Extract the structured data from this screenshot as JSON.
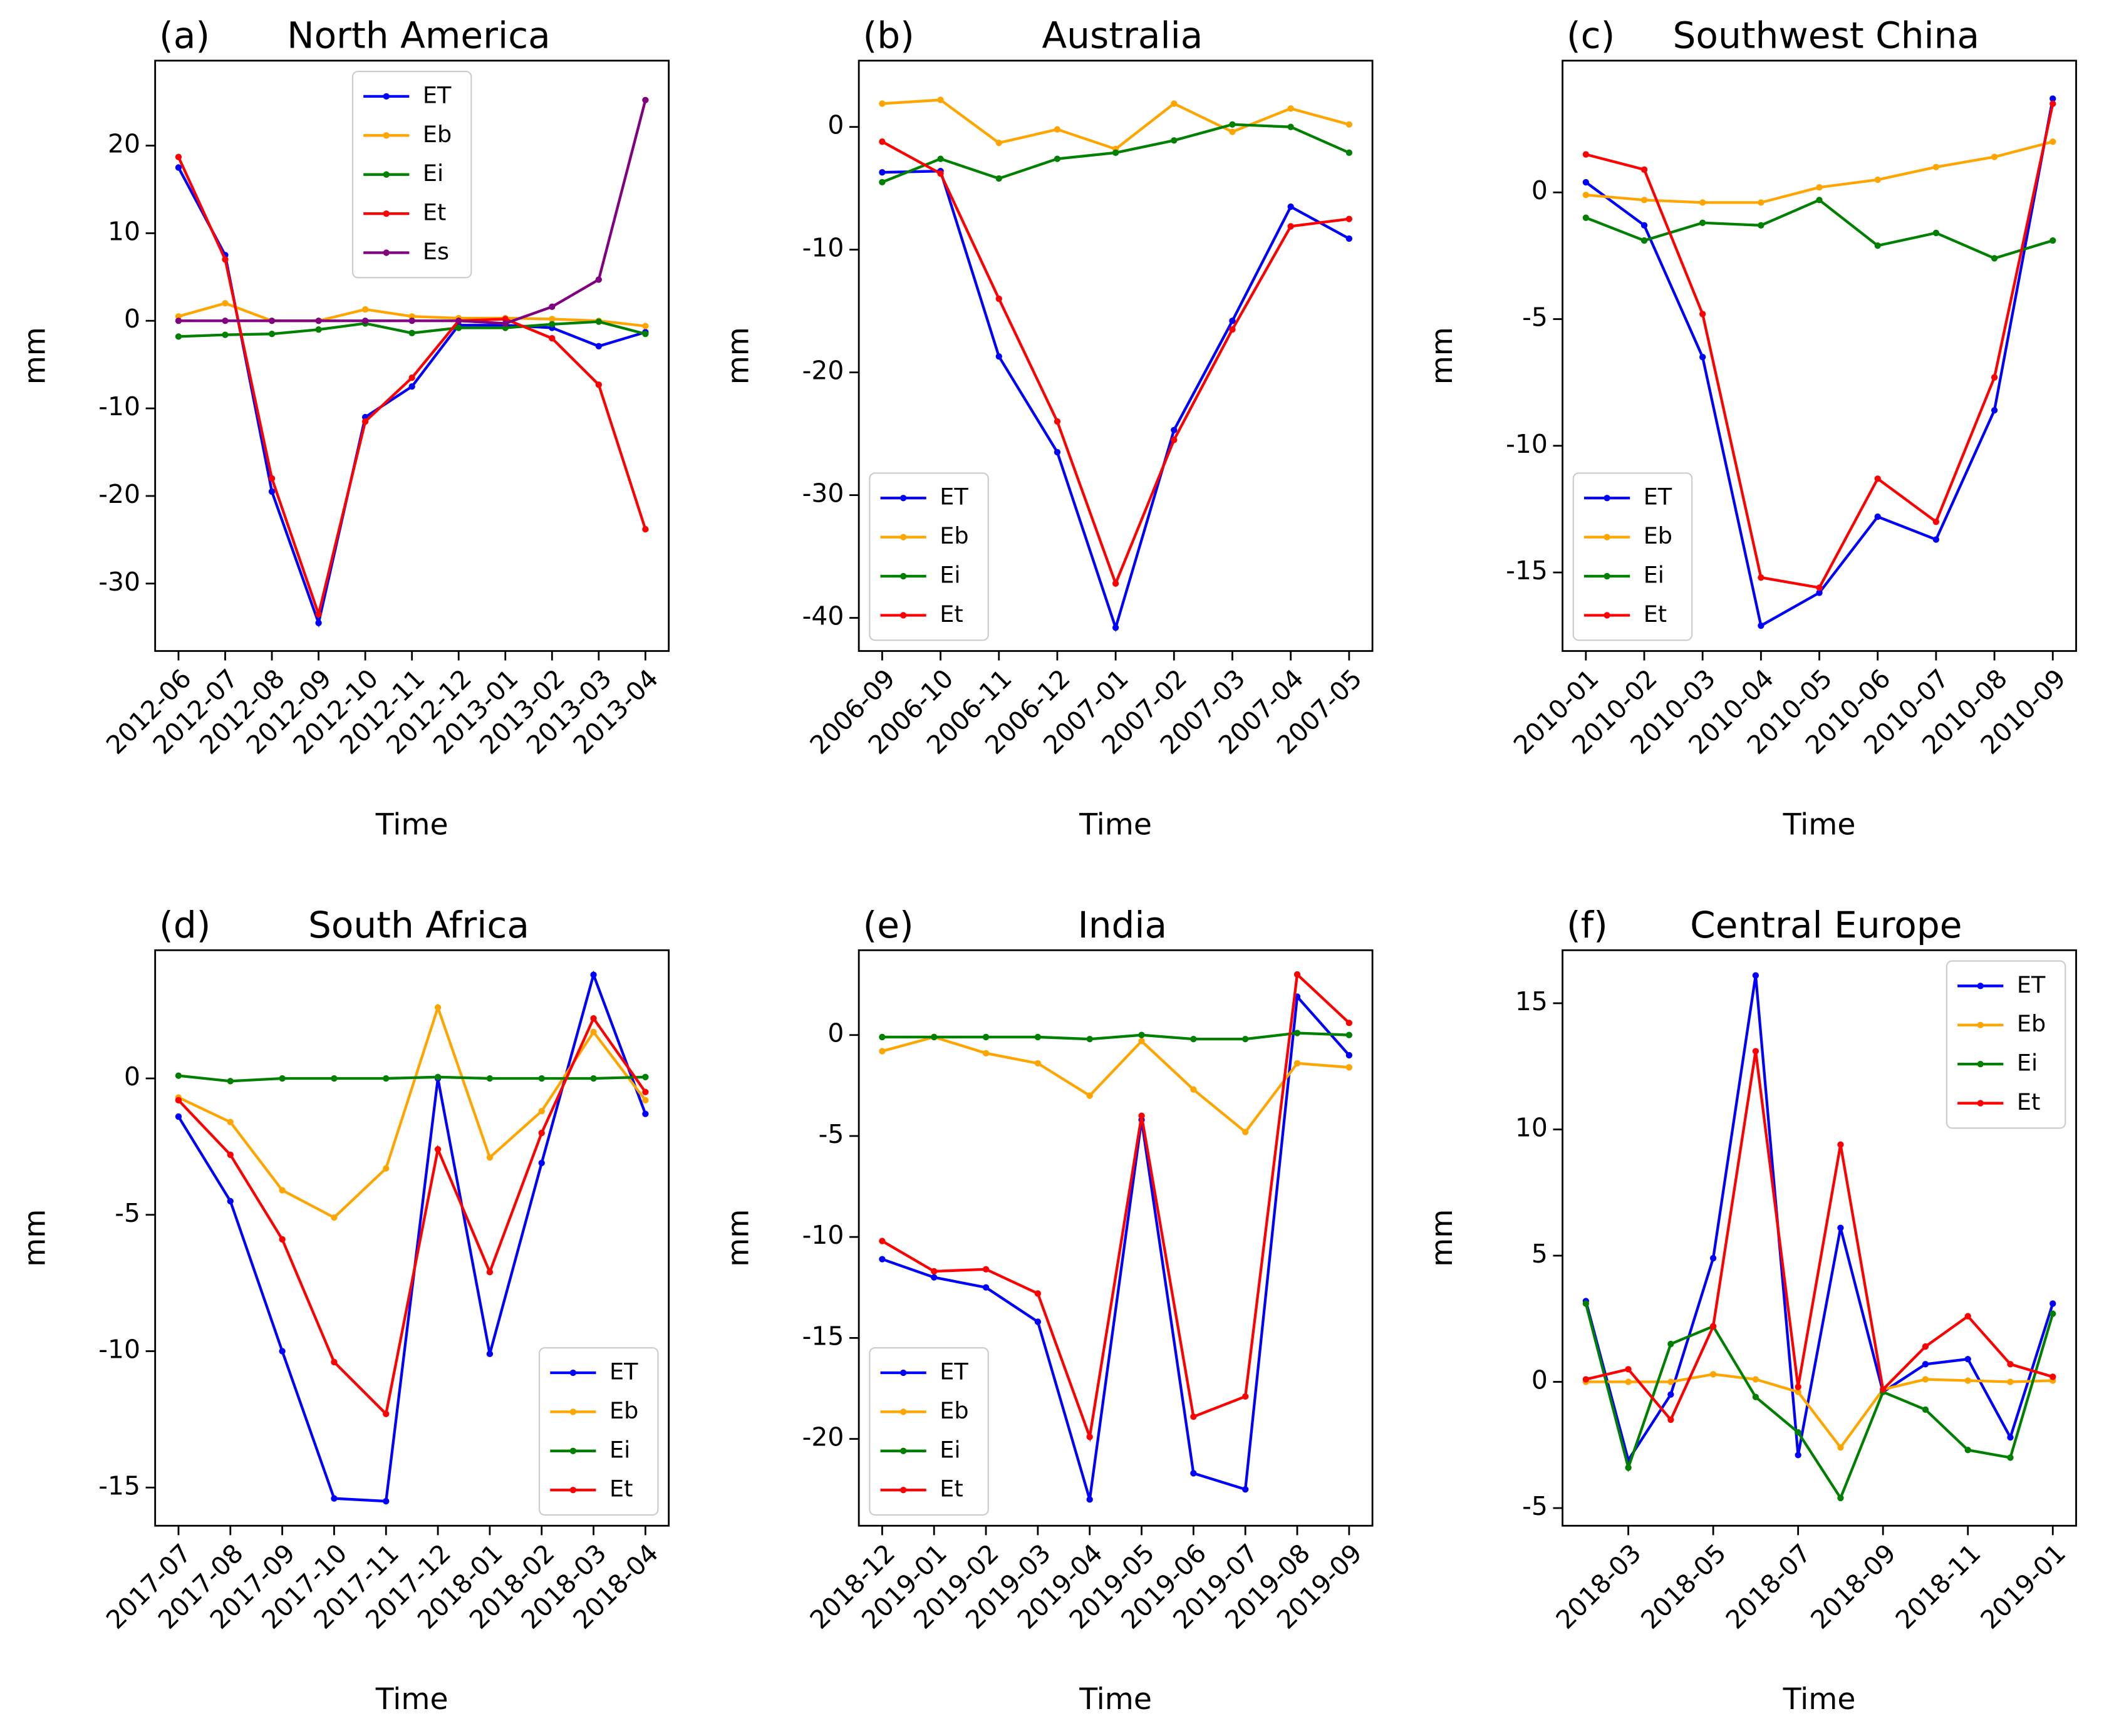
{
  "chart_data": [
    {
      "type": "line",
      "panel_label": "(a)",
      "title": "North America",
      "xlabel": "Time",
      "ylabel": "mm",
      "categories": [
        "2012-06",
        "2012-07",
        "2012-08",
        "2012-09",
        "2012-10",
        "2012-11",
        "2012-12",
        "2013-01",
        "2013-02",
        "2013-03",
        "2013-04"
      ],
      "ylim": [
        -37.7,
        29.7
      ],
      "yticks": [
        -30,
        -20,
        -10,
        0,
        10,
        20
      ],
      "legend": "upper center",
      "series": [
        {
          "name": "ET",
          "color": "#0000ff",
          "values": [
            17.5,
            7.5,
            -19.5,
            -34.5,
            -11,
            -7.5,
            -0.5,
            -0.5,
            -0.8,
            -2.9,
            -1.3
          ]
        },
        {
          "name": "Eb",
          "color": "#ffa500",
          "values": [
            0.5,
            2,
            0,
            0,
            1.3,
            0.5,
            0.3,
            0.3,
            0.2,
            0,
            -0.6
          ]
        },
        {
          "name": "Ei",
          "color": "#008000",
          "values": [
            -1.8,
            -1.6,
            -1.5,
            -1,
            -0.3,
            -1.4,
            -0.8,
            -0.8,
            -0.4,
            -0.1,
            -1.5
          ]
        },
        {
          "name": "Et",
          "color": "#ff0000",
          "values": [
            18.7,
            7,
            -18,
            -33.5,
            -11.5,
            -6.5,
            0,
            0.2,
            -2,
            -7.3,
            -23.8
          ]
        },
        {
          "name": "Es",
          "color": "#800080",
          "values": [
            0,
            0,
            0,
            0,
            0,
            0,
            0,
            -0.3,
            1.6,
            4.7,
            25.2
          ]
        }
      ]
    },
    {
      "type": "line",
      "panel_label": "(b)",
      "title": "Australia",
      "xlabel": "Time",
      "ylabel": "mm",
      "categories": [
        "2006-09",
        "2006-10",
        "2006-11",
        "2006-12",
        "2007-01",
        "2007-02",
        "2007-03",
        "2007-04",
        "2007-05"
      ],
      "ylim": [
        -42.7,
        5.4
      ],
      "yticks": [
        -40,
        -30,
        -20,
        -10,
        0
      ],
      "legend": "lower left",
      "series": [
        {
          "name": "ET",
          "color": "#0000ff",
          "values": [
            -3.7,
            -3.6,
            -18.7,
            -26.5,
            -40.8,
            -24.7,
            -15.8,
            -6.5,
            -9.1
          ]
        },
        {
          "name": "Eb",
          "color": "#ffa500",
          "values": [
            1.9,
            2.2,
            -1.3,
            -0.2,
            -1.8,
            1.9,
            -0.4,
            1.5,
            0.2
          ]
        },
        {
          "name": "Ei",
          "color": "#008000",
          "values": [
            -4.5,
            -2.6,
            -4.2,
            -2.6,
            -2.1,
            -1.1,
            0.2,
            0,
            -2.1
          ]
        },
        {
          "name": "Et",
          "color": "#ff0000",
          "values": [
            -1.2,
            -3.8,
            -14,
            -24,
            -37.2,
            -25.5,
            -16.5,
            -8.1,
            -7.5
          ]
        }
      ]
    },
    {
      "type": "line",
      "panel_label": "(c)",
      "title": "Southwest China",
      "xlabel": "Time",
      "ylabel": "mm",
      "categories": [
        "2010-01",
        "2010-02",
        "2010-03",
        "2010-04",
        "2010-05",
        "2010-06",
        "2010-07",
        "2010-08",
        "2010-09"
      ],
      "ylim": [
        -18.1,
        5.2
      ],
      "yticks": [
        -15,
        -10,
        -5,
        0
      ],
      "legend": "lower left",
      "series": [
        {
          "name": "ET",
          "color": "#0000ff",
          "values": [
            0.4,
            -1.3,
            -6.5,
            -17.1,
            -15.8,
            -12.8,
            -13.7,
            -8.6,
            3.7
          ]
        },
        {
          "name": "Eb",
          "color": "#ffa500",
          "values": [
            -0.1,
            -0.3,
            -0.4,
            -0.4,
            0.2,
            0.5,
            1,
            1.4,
            2
          ]
        },
        {
          "name": "Ei",
          "color": "#008000",
          "values": [
            -1,
            -1.9,
            -1.2,
            -1.3,
            -0.3,
            -2.1,
            -1.6,
            -2.6,
            -1.9
          ]
        },
        {
          "name": "Et",
          "color": "#ff0000",
          "values": [
            1.5,
            0.9,
            -4.8,
            -15.2,
            -15.6,
            -11.3,
            -13,
            -7.3,
            3.5
          ]
        }
      ]
    },
    {
      "type": "line",
      "panel_label": "(d)",
      "title": "South Africa",
      "xlabel": "Time",
      "ylabel": "mm",
      "categories": [
        "2017-07",
        "2017-08",
        "2017-09",
        "2017-10",
        "2017-11",
        "2017-12",
        "2018-01",
        "2018-02",
        "2018-03",
        "2018-04"
      ],
      "ylim": [
        -16.4,
        4.7
      ],
      "yticks": [
        -15,
        -10,
        -5,
        0
      ],
      "legend": "lower right",
      "series": [
        {
          "name": "ET",
          "color": "#0000ff",
          "values": [
            -1.4,
            -4.5,
            -10,
            -15.4,
            -15.5,
            0,
            -10.1,
            -3.1,
            3.8,
            -1.3
          ]
        },
        {
          "name": "Eb",
          "color": "#ffa500",
          "values": [
            -0.7,
            -1.6,
            -4.1,
            -5.1,
            -3.3,
            2.6,
            -2.9,
            -1.2,
            1.7,
            -0.8
          ]
        },
        {
          "name": "Ei",
          "color": "#008000",
          "values": [
            0.1,
            -0.1,
            0,
            0,
            0,
            0.05,
            0,
            0,
            0,
            0.05
          ]
        },
        {
          "name": "Et",
          "color": "#ff0000",
          "values": [
            -0.8,
            -2.8,
            -5.9,
            -10.4,
            -12.3,
            -2.6,
            -7.1,
            -2,
            2.2,
            -0.5
          ]
        }
      ]
    },
    {
      "type": "line",
      "panel_label": "(e)",
      "title": "India",
      "xlabel": "Time",
      "ylabel": "mm",
      "categories": [
        "2018-12",
        "2019-01",
        "2019-02",
        "2019-03",
        "2019-04",
        "2019-05",
        "2019-06",
        "2019-07",
        "2019-08",
        "2019-09"
      ],
      "ylim": [
        -24.3,
        4.2
      ],
      "yticks": [
        -20,
        -15,
        -10,
        -5,
        0
      ],
      "legend": "lower left",
      "series": [
        {
          "name": "ET",
          "color": "#0000ff",
          "values": [
            -11.1,
            -12,
            -12.5,
            -14.2,
            -23,
            -4.2,
            -21.7,
            -22.5,
            1.9,
            -1
          ]
        },
        {
          "name": "Eb",
          "color": "#ffa500",
          "values": [
            -0.8,
            -0.1,
            -0.9,
            -1.4,
            -3,
            -0.3,
            -2.7,
            -4.8,
            -1.4,
            -1.6
          ]
        },
        {
          "name": "Ei",
          "color": "#008000",
          "values": [
            -0.1,
            -0.1,
            -0.1,
            -0.1,
            -0.2,
            0,
            -0.2,
            -0.2,
            0.1,
            0
          ]
        },
        {
          "name": "Et",
          "color": "#ff0000",
          "values": [
            -10.2,
            -11.7,
            -11.6,
            -12.8,
            -19.9,
            -4,
            -18.9,
            -17.9,
            3,
            0.6
          ]
        }
      ]
    },
    {
      "type": "line",
      "panel_label": "(f)",
      "title": "Central Europe",
      "xlabel": "Time",
      "ylabel": "mm",
      "categories": [
        null,
        "2018-03",
        null,
        "2018-05",
        null,
        "2018-07",
        null,
        "2018-09",
        null,
        "2018-11",
        null,
        "2019-01"
      ],
      "ylim": [
        -5.7,
        17.1
      ],
      "yticks": [
        -5,
        0,
        5,
        10,
        15
      ],
      "legend": "upper right",
      "series": [
        {
          "name": "ET",
          "color": "#0000ff",
          "values": [
            3.2,
            -3.1,
            -0.5,
            4.9,
            16.1,
            -2.9,
            6.1,
            -0.4,
            0.7,
            0.9,
            -2.2,
            3.1
          ]
        },
        {
          "name": "Eb",
          "color": "#ffa500",
          "values": [
            0,
            0,
            0,
            0.3,
            0.1,
            -0.4,
            -2.6,
            -0.3,
            0.1,
            0.05,
            0,
            0.05
          ]
        },
        {
          "name": "Ei",
          "color": "#008000",
          "values": [
            3.1,
            -3.4,
            1.5,
            2.2,
            -0.6,
            -2,
            -4.6,
            -0.4,
            -1.1,
            -2.7,
            -3,
            2.7
          ]
        },
        {
          "name": "Et",
          "color": "#ff0000",
          "values": [
            0.1,
            0.5,
            -1.5,
            2.2,
            13.1,
            -0.2,
            9.4,
            -0.3,
            1.4,
            2.6,
            0.7,
            0.2
          ]
        }
      ]
    }
  ]
}
